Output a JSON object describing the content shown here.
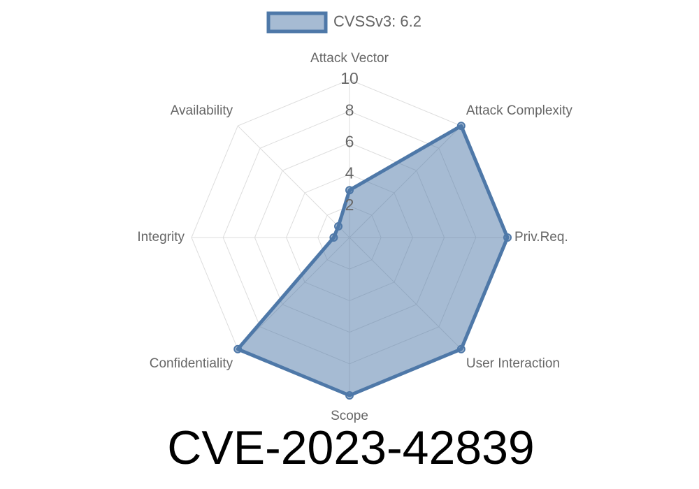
{
  "chart_data": {
    "type": "radar",
    "title": "CVE-2023-42839",
    "categories": [
      "Attack Vector",
      "Attack Complexity",
      "Priv.Req.",
      "User Interaction",
      "Scope",
      "Confidentiality",
      "Integrity",
      "Availability"
    ],
    "series": [
      {
        "name": "CVSSv3: 6.2",
        "color": "#4e78a8",
        "values": [
          3,
          10,
          10,
          10,
          10,
          10,
          1,
          1
        ]
      }
    ],
    "rlim": [
      0,
      10
    ],
    "rticks": [
      2,
      4,
      6,
      8,
      10
    ],
    "grid": true,
    "legend": "top"
  }
}
